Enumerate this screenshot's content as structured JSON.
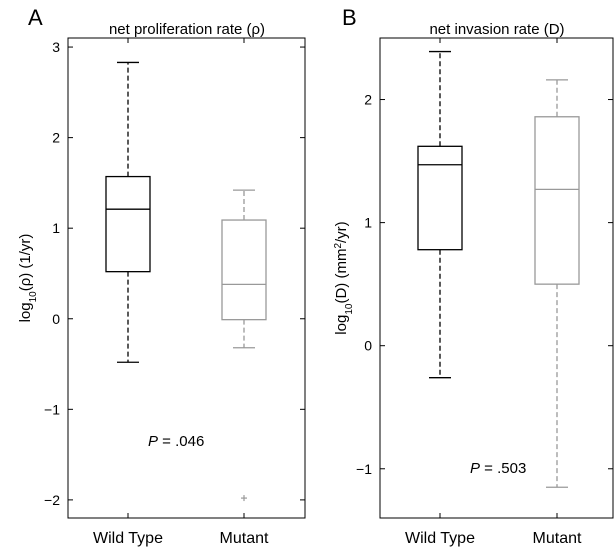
{
  "chart_data": [
    {
      "type": "box",
      "panel_label": "A",
      "title": "net proliferation rate (ρ)",
      "ylabel": {
        "prefix": "log",
        "sub": "10",
        "suffix": "(ρ) (1/yr)"
      },
      "categories": [
        "Wild Type",
        "Mutant"
      ],
      "ylim": [
        -2.2,
        3.1
      ],
      "yticks": [
        -2,
        -1,
        0,
        1,
        2,
        3
      ],
      "ytick_labels": [
        "−2",
        "−1",
        "0",
        "1",
        "2",
        "3"
      ],
      "series": [
        {
          "category": "Wild Type",
          "min": -0.48,
          "q1": 0.52,
          "median": 1.21,
          "q3": 1.57,
          "max": 2.83,
          "outliers": [],
          "color": "#000000"
        },
        {
          "category": "Mutant",
          "min": -0.32,
          "q1": -0.01,
          "median": 0.38,
          "q3": 1.09,
          "max": 1.42,
          "outliers": [
            -1.98
          ],
          "color": "#999999"
        }
      ],
      "annotation": {
        "italic": "P",
        "rest": " = .046"
      }
    },
    {
      "type": "box",
      "panel_label": "B",
      "title": "net invasion rate (D)",
      "ylabel": {
        "prefix": "log",
        "sub": "10",
        "mid": "(D) (mm",
        "sup": "2",
        "suffix": "/yr)"
      },
      "categories": [
        "Wild Type",
        "Mutant"
      ],
      "ylim": [
        -1.4,
        2.5
      ],
      "yticks": [
        -1,
        0,
        1,
        2
      ],
      "ytick_labels": [
        "−1",
        "0",
        "1",
        "2"
      ],
      "series": [
        {
          "category": "Wild Type",
          "min": -0.26,
          "q1": 0.78,
          "median": 1.47,
          "q3": 1.62,
          "max": 2.39,
          "outliers": [],
          "color": "#000000"
        },
        {
          "category": "Mutant",
          "min": -1.15,
          "q1": 0.5,
          "median": 1.27,
          "q3": 1.86,
          "max": 2.16,
          "outliers": [],
          "color": "#999999"
        }
      ],
      "annotation": {
        "italic": "P",
        "rest": " = .503"
      }
    }
  ]
}
